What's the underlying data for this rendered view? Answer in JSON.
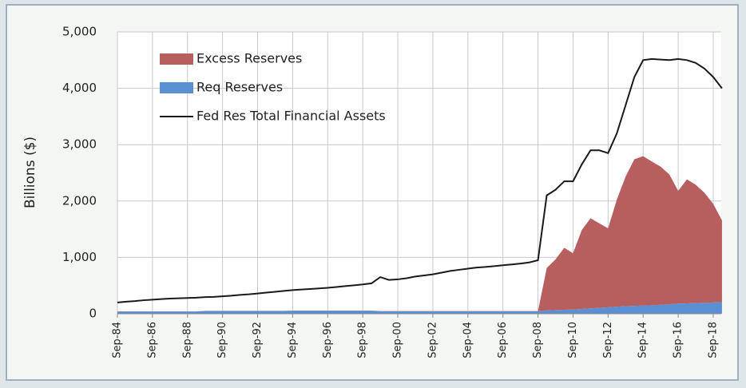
{
  "chart_data": {
    "type": "area",
    "ylabel": "Billions ($)",
    "stacked": true,
    "grid": true,
    "legend": "upper left",
    "categories": [
      "Sep-84",
      null,
      null,
      null,
      "Sep-86",
      null,
      null,
      null,
      "Sep-88",
      null,
      null,
      null,
      "Sep-90",
      null,
      null,
      null,
      "Sep-92",
      null,
      null,
      null,
      "Sep-94",
      null,
      null,
      null,
      "Sep-96",
      null,
      null,
      null,
      "Sep-98",
      null,
      null,
      null,
      "Sep-00",
      null,
      null,
      null,
      "Sep-02",
      null,
      null,
      null,
      "Sep-04",
      null,
      null,
      null,
      "Sep-06",
      null,
      null,
      null,
      "Sep-08",
      null,
      null,
      null,
      "Sep-10",
      null,
      null,
      null,
      "Sep-12",
      null,
      null,
      null,
      "Sep-14",
      null,
      null,
      null,
      "Sep-16",
      null,
      null,
      null,
      "Sep-18",
      null
    ],
    "series": [
      {
        "name": "Excess Reserves",
        "type": "area",
        "color": "#b75f5e",
        "values": [
          2,
          2,
          2,
          2,
          2,
          2,
          2,
          2,
          2,
          2,
          2,
          2,
          2,
          2,
          2,
          2,
          2,
          2,
          2,
          2,
          2,
          2,
          2,
          2,
          2,
          2,
          2,
          2,
          2,
          2,
          2,
          2,
          2,
          2,
          2,
          2,
          2,
          2,
          2,
          2,
          2,
          2,
          2,
          2,
          2,
          2,
          2,
          2,
          2,
          750,
          900,
          1100,
          1000,
          1400,
          1600,
          1500,
          1400,
          1900,
          2300,
          2600,
          2650,
          2550,
          2450,
          2300,
          2000,
          2200,
          2100,
          1950,
          1750,
          1450
        ]
      },
      {
        "name": "Req Reserves",
        "type": "area",
        "color": "#5a8fd2",
        "values": [
          40,
          40,
          40,
          40,
          40,
          40,
          40,
          40,
          40,
          40,
          50,
          50,
          50,
          50,
          50,
          50,
          50,
          50,
          50,
          50,
          55,
          55,
          55,
          55,
          55,
          55,
          55,
          55,
          55,
          55,
          45,
          45,
          45,
          45,
          45,
          45,
          45,
          45,
          45,
          45,
          45,
          45,
          45,
          45,
          45,
          45,
          45,
          45,
          45,
          60,
          65,
          70,
          75,
          85,
          95,
          105,
          115,
          125,
          135,
          140,
          145,
          150,
          160,
          170,
          180,
          185,
          190,
          195,
          200,
          205
        ]
      },
      {
        "name": "Fed Res Total Financial Assets",
        "type": "line",
        "color": "#1a1a1a",
        "values": [
          200,
          215,
          225,
          240,
          250,
          260,
          270,
          275,
          280,
          285,
          295,
          300,
          310,
          320,
          335,
          345,
          360,
          375,
          390,
          405,
          420,
          430,
          440,
          450,
          460,
          475,
          490,
          505,
          520,
          540,
          650,
          600,
          610,
          630,
          660,
          680,
          700,
          730,
          760,
          780,
          800,
          820,
          830,
          845,
          860,
          875,
          890,
          910,
          950,
          2100,
          2200,
          2350,
          2350,
          2650,
          2900,
          2900,
          2850,
          3200,
          3700,
          4200,
          4500,
          4520,
          4510,
          4500,
          4520,
          4500,
          4450,
          4350,
          4200,
          4000
        ]
      }
    ],
    "ylim": [
      0,
      5000
    ],
    "yticks": [
      0,
      {
        "value": 1000,
        "label": "1,000"
      },
      {
        "value": 2000,
        "label": "2,000"
      },
      {
        "value": 3000,
        "label": "3,000"
      },
      {
        "value": 4000,
        "label": "4,000"
      },
      {
        "value": 5000,
        "label": "5,000"
      }
    ]
  }
}
